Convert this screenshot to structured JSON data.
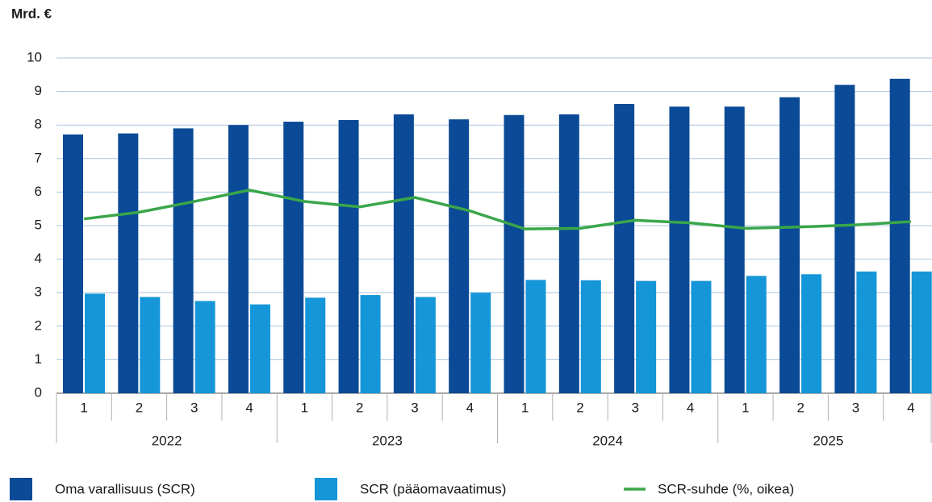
{
  "chart_data": {
    "type": "bar",
    "y_label": "Mrd. €",
    "categories": [
      "1",
      "2",
      "3",
      "4",
      "1",
      "2",
      "3",
      "4",
      "1",
      "2",
      "3",
      "4",
      "1",
      "2",
      "3",
      "4"
    ],
    "x_groups": [
      "2022",
      "2023",
      "2024",
      "2025"
    ],
    "series": [
      {
        "name": "Oma varallisuus (SCR)",
        "color": "#0b4a96",
        "values": [
          7.72,
          7.75,
          7.9,
          8.0,
          8.1,
          8.15,
          8.32,
          8.17,
          8.3,
          8.32,
          8.63,
          8.55,
          8.55,
          8.83,
          9.2,
          9.38
        ]
      },
      {
        "name": "SCR (pääomavaatimus)",
        "color": "#1596d8",
        "values": [
          2.97,
          2.87,
          2.75,
          2.65,
          2.85,
          2.93,
          2.87,
          3.0,
          3.38,
          3.37,
          3.35,
          3.35,
          3.5,
          3.55,
          3.63,
          3.63
        ]
      },
      {
        "name": "SCR-suhde (%, oikea)",
        "color": "#3aa64a",
        "type": "line",
        "axis": "y2",
        "values": [
          260,
          270,
          286,
          303,
          286,
          278,
          292,
          272,
          245,
          246,
          258,
          254,
          246,
          248,
          251,
          256
        ]
      }
    ],
    "ylim": [
      0,
      10
    ],
    "yticks": [
      0,
      1,
      2,
      3,
      4,
      5,
      6,
      7,
      8,
      9,
      10
    ],
    "y2lim": [
      0,
      500
    ],
    "grid": true
  }
}
